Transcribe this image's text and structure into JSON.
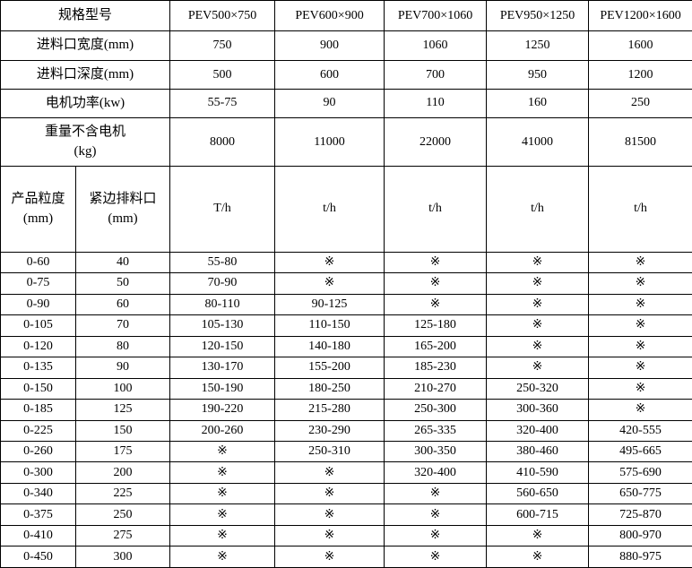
{
  "table": {
    "model_header": {
      "label": "规格型号",
      "models": [
        "PEV500×750",
        "PEV600×900",
        "PEV700×1060",
        "PEV950×1250",
        "PEV1200×1600"
      ]
    },
    "spec_rows": [
      {
        "label": "进料口宽度(mm)",
        "values": [
          "750",
          "900",
          "1060",
          "1250",
          "1600"
        ]
      },
      {
        "label": "进料口深度(mm)",
        "values": [
          "500",
          "600",
          "700",
          "950",
          "1200"
        ]
      },
      {
        "label": "电机功率(kw)",
        "values": [
          "55-75",
          "90",
          "110",
          "160",
          "250"
        ]
      },
      {
        "label": "重量不含电机\n(kg)",
        "values": [
          "8000",
          "11000",
          "22000",
          "41000",
          "81500"
        ]
      }
    ],
    "capacity_header": {
      "size_label": "产品粒度\n(mm)",
      "gap_label": "紧边排料口\n(mm)",
      "units": [
        "T/h",
        "t/h",
        "t/h",
        "t/h",
        "t/h"
      ]
    },
    "capacity_rows": [
      {
        "size": "0-60",
        "gap": "40",
        "values": [
          "55-80",
          "※",
          "※",
          "※",
          "※"
        ]
      },
      {
        "size": "0-75",
        "gap": "50",
        "values": [
          "70-90",
          "※",
          "※",
          "※",
          "※"
        ]
      },
      {
        "size": "0-90",
        "gap": "60",
        "values": [
          "80-110",
          "90-125",
          "※",
          "※",
          "※"
        ]
      },
      {
        "size": "0-105",
        "gap": "70",
        "values": [
          "105-130",
          "110-150",
          "125-180",
          "※",
          "※"
        ]
      },
      {
        "size": "0-120",
        "gap": "80",
        "values": [
          "120-150",
          "140-180",
          "165-200",
          "※",
          "※"
        ]
      },
      {
        "size": "0-135",
        "gap": "90",
        "values": [
          "130-170",
          "155-200",
          "185-230",
          "※",
          "※"
        ]
      },
      {
        "size": "0-150",
        "gap": "100",
        "values": [
          "150-190",
          "180-250",
          "210-270",
          "250-320",
          "※"
        ]
      },
      {
        "size": "0-185",
        "gap": "125",
        "values": [
          "190-220",
          "215-280",
          "250-300",
          "300-360",
          "※"
        ]
      },
      {
        "size": "0-225",
        "gap": "150",
        "values": [
          "200-260",
          "230-290",
          "265-335",
          "320-400",
          "420-555"
        ]
      },
      {
        "size": "0-260",
        "gap": "175",
        "values": [
          "※",
          "250-310",
          "300-350",
          "380-460",
          "495-665"
        ]
      },
      {
        "size": "0-300",
        "gap": "200",
        "values": [
          "※",
          "※",
          "320-400",
          "410-590",
          "575-690"
        ]
      },
      {
        "size": "0-340",
        "gap": "225",
        "values": [
          "※",
          "※",
          "※",
          "560-650",
          "650-775"
        ]
      },
      {
        "size": "0-375",
        "gap": "250",
        "values": [
          "※",
          "※",
          "※",
          "600-715",
          "725-870"
        ]
      },
      {
        "size": "0-410",
        "gap": "275",
        "values": [
          "※",
          "※",
          "※",
          "※",
          "800-970"
        ]
      },
      {
        "size": "0-450",
        "gap": "300",
        "values": [
          "※",
          "※",
          "※",
          "※",
          "880-975"
        ]
      }
    ],
    "colors": {
      "border": "#000000",
      "text": "#000000",
      "background": "#ffffff"
    }
  }
}
